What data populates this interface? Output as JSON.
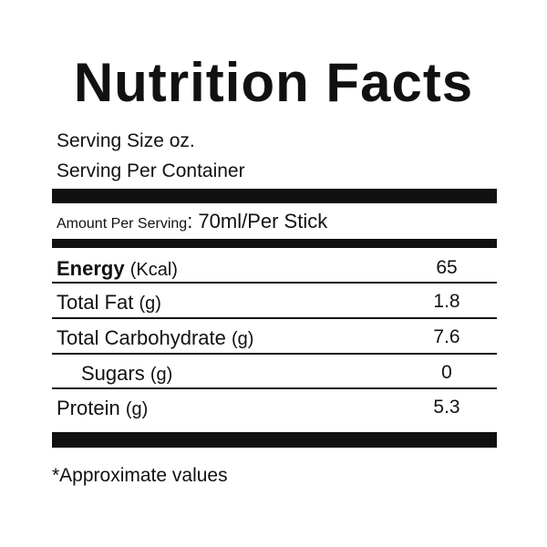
{
  "header": {
    "title": "Nutrition Facts"
  },
  "serving": {
    "size": "Serving Size oz.",
    "per_container": "Serving Per Container"
  },
  "amount": {
    "label": "Amount Per Serving",
    "value": ": 70ml/Per Stick"
  },
  "rows": [
    {
      "name": "Energy",
      "unit": "(Kcal)",
      "value": "65"
    },
    {
      "name": "Total Fat",
      "unit": "(g)",
      "value": "1.8"
    },
    {
      "name": "Total Carbohydrate",
      "unit": "(g)",
      "value": "7.6"
    },
    {
      "name": "Sugars",
      "unit": "(g)",
      "value": "0"
    },
    {
      "name": "Protein",
      "unit": "(g)",
      "value": "5.3"
    }
  ],
  "footnote": "*Approximate values"
}
